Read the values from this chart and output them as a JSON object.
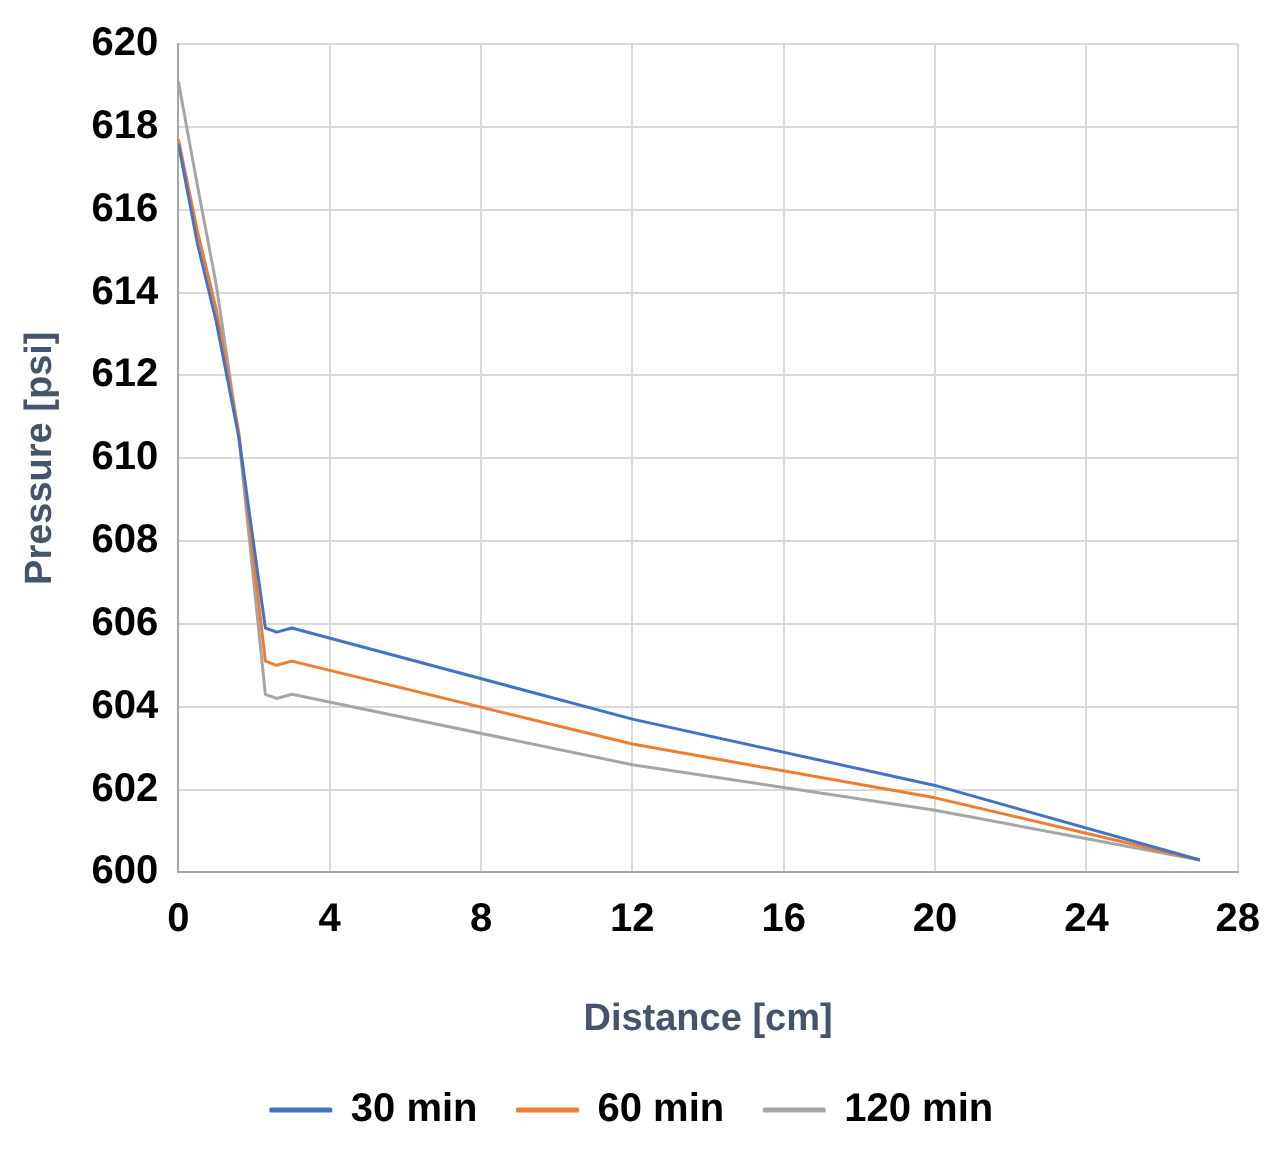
{
  "chart_data": {
    "type": "line",
    "xlabel": "Distance [cm]",
    "ylabel": "Pressure [psi]",
    "xlim": [
      0,
      28
    ],
    "xticks": [
      0,
      4,
      8,
      12,
      16,
      20,
      24,
      28
    ],
    "ylim": [
      600,
      620
    ],
    "yticks": [
      600,
      602,
      604,
      606,
      608,
      610,
      612,
      614,
      616,
      618,
      620
    ],
    "grid": true,
    "legend": "bottom",
    "marker": "none",
    "line_style": "solid",
    "series": [
      {
        "name": "30 min",
        "color": "#4472c4",
        "x": [
          0,
          0.5,
          1,
          1.6,
          2.3,
          2.6,
          3,
          12,
          20,
          27
        ],
        "values": [
          617.6,
          615.2,
          613.3,
          610.5,
          605.9,
          605.8,
          605.9,
          603.7,
          602.1,
          600.3
        ]
      },
      {
        "name": "60 min",
        "color": "#ed7d31",
        "x": [
          0,
          0.5,
          1,
          1.6,
          2.3,
          2.6,
          3,
          12,
          20,
          27
        ],
        "values": [
          617.7,
          615.5,
          613.6,
          610.6,
          605.1,
          605.0,
          605.1,
          603.1,
          601.8,
          600.3
        ]
      },
      {
        "name": "120 min",
        "color": "#a5a5a5",
        "x": [
          0,
          0.5,
          1,
          1.6,
          2.3,
          2.6,
          3,
          12,
          20,
          27
        ],
        "values": [
          619.1,
          616.6,
          614.2,
          610.5,
          604.3,
          604.2,
          604.3,
          602.6,
          601.5,
          600.3
        ]
      }
    ]
  }
}
